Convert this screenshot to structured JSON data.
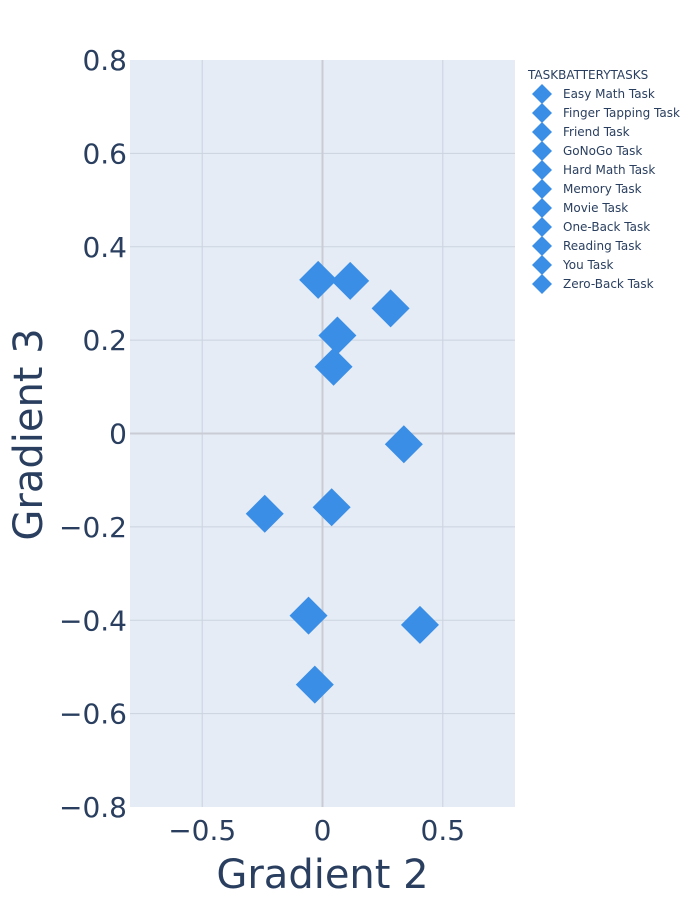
{
  "chart_data": {
    "type": "scatter",
    "title": "",
    "xlabel": "Gradient 2",
    "ylabel": "Gradient 3",
    "xlim": [
      -0.8,
      0.8
    ],
    "ylim": [
      -0.8,
      0.8
    ],
    "x_ticks": [
      -0.5,
      0,
      0.5
    ],
    "y_ticks": [
      -0.8,
      -0.6,
      -0.4,
      -0.2,
      0,
      0.2,
      0.4,
      0.6,
      0.8
    ],
    "x_tick_labels": [
      "−0.5",
      "0",
      "0.5"
    ],
    "y_tick_labels": [
      "−0.8",
      "−0.6",
      "−0.4",
      "−0.2",
      "0",
      "0.2",
      "0.4",
      "0.6",
      "0.8"
    ],
    "grid": true,
    "legend_placement": "top-right-outside",
    "legend_title": "TASKBATTERYTASKS",
    "marker": "diamond",
    "color": "#3a8ee6",
    "background_color": "#e5ecf6",
    "grid_color": "#cbd3df",
    "zero_line_color": "#c9ccd4",
    "series": [
      {
        "name": "Easy Math Task",
        "x": 0.115,
        "y": 0.327
      },
      {
        "name": "Finger Tapping Task",
        "x": 0.405,
        "y": -0.41
      },
      {
        "name": "Friend Task",
        "x": -0.24,
        "y": -0.172
      },
      {
        "name": "GoNoGo Task",
        "x": 0.338,
        "y": -0.023
      },
      {
        "name": "Hard Math Task",
        "x": 0.062,
        "y": 0.21
      },
      {
        "name": "Memory Task",
        "x": -0.058,
        "y": -0.39
      },
      {
        "name": "Movie Task",
        "x": -0.032,
        "y": -0.538
      },
      {
        "name": "One-Back Task",
        "x": -0.018,
        "y": 0.329
      },
      {
        "name": "Reading Task",
        "x": 0.283,
        "y": 0.268
      },
      {
        "name": "You Task",
        "x": 0.046,
        "y": 0.143
      },
      {
        "name": "Zero-Back Task",
        "x": 0.038,
        "y": -0.158
      }
    ]
  }
}
